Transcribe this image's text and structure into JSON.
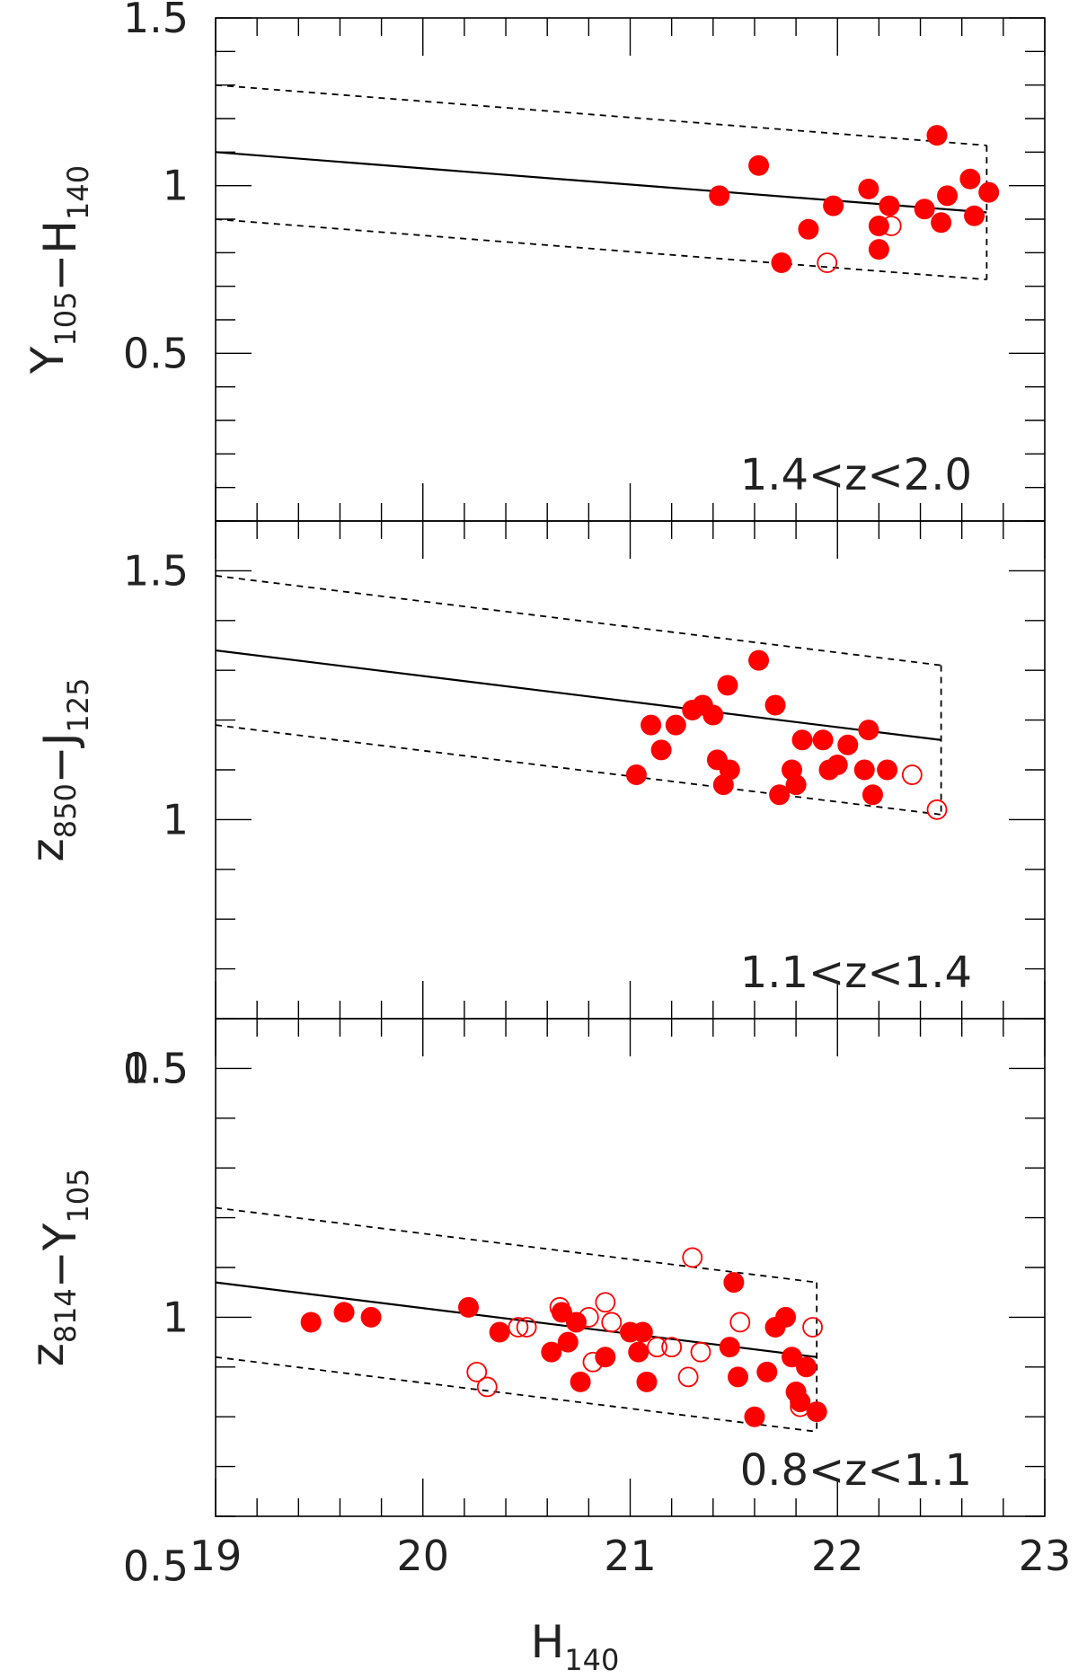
{
  "chart_data": {
    "type": "scatter",
    "shared_x": {
      "xlim": [
        19,
        23
      ],
      "xticks": [
        "19",
        "20",
        "21",
        "22",
        "23"
      ],
      "xlabel": "H",
      "xlabel_sub": "140"
    },
    "markers": {
      "filled_color": "#ff0000",
      "open_color": "#ff0000"
    },
    "panels": [
      {
        "label": "1.4<z<2.0",
        "ylabel_parts": [
          {
            "t": "Y",
            "sub": "105"
          },
          {
            "t": "−H",
            "sub": "140"
          }
        ],
        "ylim": [
          0.0,
          1.5
        ],
        "yticks": [
          "0.5",
          "1",
          "1.5"
        ],
        "red_sequence": {
          "x": [
            19.0,
            22.72
          ],
          "y": [
            1.1,
            0.92
          ],
          "scatter": 0.2
        },
        "filled": [
          [
            21.43,
            0.97
          ],
          [
            21.62,
            1.06
          ],
          [
            21.73,
            0.77
          ],
          [
            21.86,
            0.87
          ],
          [
            21.98,
            0.94
          ],
          [
            22.15,
            0.99
          ],
          [
            22.2,
            0.81
          ],
          [
            22.2,
            0.88
          ],
          [
            22.25,
            0.94
          ],
          [
            22.42,
            0.93
          ],
          [
            22.48,
            1.15
          ],
          [
            22.5,
            0.89
          ],
          [
            22.53,
            0.97
          ],
          [
            22.64,
            1.02
          ],
          [
            22.66,
            0.91
          ],
          [
            22.73,
            0.98
          ]
        ],
        "open": [
          [
            21.95,
            0.77
          ],
          [
            22.26,
            0.88
          ]
        ]
      },
      {
        "label": "1.1<z<1.4",
        "ylabel_parts": [
          {
            "t": "z",
            "sub": "850"
          },
          {
            "t": "−J",
            "sub": "125"
          }
        ],
        "ylim": [
          0.6,
          1.6
        ],
        "yticks": [
          "0.5",
          "1",
          "1.5"
        ],
        "red_sequence": {
          "x": [
            19.0,
            22.5
          ],
          "y": [
            1.34,
            1.16
          ],
          "scatter": 0.15
        },
        "filled": [
          [
            21.03,
            1.09
          ],
          [
            21.1,
            1.19
          ],
          [
            21.15,
            1.14
          ],
          [
            21.22,
            1.19
          ],
          [
            21.3,
            1.22
          ],
          [
            21.35,
            1.23
          ],
          [
            21.4,
            1.21
          ],
          [
            21.42,
            1.12
          ],
          [
            21.45,
            1.07
          ],
          [
            21.47,
            1.27
          ],
          [
            21.48,
            1.1
          ],
          [
            21.62,
            1.32
          ],
          [
            21.7,
            1.23
          ],
          [
            21.72,
            1.05
          ],
          [
            21.78,
            1.1
          ],
          [
            21.8,
            1.07
          ],
          [
            21.83,
            1.16
          ],
          [
            21.93,
            1.16
          ],
          [
            21.96,
            1.1
          ],
          [
            22.0,
            1.11
          ],
          [
            22.05,
            1.15
          ],
          [
            22.13,
            1.1
          ],
          [
            22.15,
            1.18
          ],
          [
            22.17,
            1.05
          ],
          [
            22.24,
            1.1
          ]
        ],
        "open": [
          [
            22.36,
            1.09
          ],
          [
            22.48,
            1.02
          ]
        ]
      },
      {
        "label": "0.8<z<1.1",
        "ylabel_parts": [
          {
            "t": "z",
            "sub": "814"
          },
          {
            "t": "−Y",
            "sub": "105"
          }
        ],
        "ylim": [
          0.6,
          1.6
        ],
        "yticks": [
          "0.5",
          "1",
          "1.5"
        ],
        "red_sequence": {
          "x": [
            19.0,
            21.9
          ],
          "y": [
            1.07,
            0.92
          ],
          "scatter": 0.15
        },
        "filled": [
          [
            19.46,
            0.99
          ],
          [
            19.62,
            1.01
          ],
          [
            19.75,
            1.0
          ],
          [
            20.22,
            1.02
          ],
          [
            20.37,
            0.97
          ],
          [
            20.62,
            0.93
          ],
          [
            20.67,
            1.01
          ],
          [
            20.7,
            0.95
          ],
          [
            20.74,
            0.99
          ],
          [
            20.76,
            0.87
          ],
          [
            20.88,
            0.92
          ],
          [
            21.0,
            0.97
          ],
          [
            21.04,
            0.93
          ],
          [
            21.06,
            0.97
          ],
          [
            21.08,
            0.87
          ],
          [
            21.48,
            0.94
          ],
          [
            21.5,
            1.07
          ],
          [
            21.52,
            0.88
          ],
          [
            21.6,
            0.8
          ],
          [
            21.66,
            0.89
          ],
          [
            21.7,
            0.98
          ],
          [
            21.75,
            1.0
          ],
          [
            21.78,
            0.92
          ],
          [
            21.8,
            0.85
          ],
          [
            21.82,
            0.83
          ],
          [
            21.85,
            0.9
          ],
          [
            21.9,
            0.81
          ]
        ],
        "open": [
          [
            20.26,
            0.89
          ],
          [
            20.31,
            0.86
          ],
          [
            20.46,
            0.98
          ],
          [
            20.5,
            0.98
          ],
          [
            20.66,
            1.02
          ],
          [
            20.8,
            1.0
          ],
          [
            20.82,
            0.91
          ],
          [
            20.88,
            1.03
          ],
          [
            20.91,
            0.99
          ],
          [
            21.13,
            0.94
          ],
          [
            21.2,
            0.94
          ],
          [
            21.28,
            0.88
          ],
          [
            21.3,
            1.12
          ],
          [
            21.34,
            0.93
          ],
          [
            21.53,
            0.99
          ],
          [
            21.82,
            0.82
          ],
          [
            21.88,
            0.98
          ]
        ]
      }
    ]
  }
}
